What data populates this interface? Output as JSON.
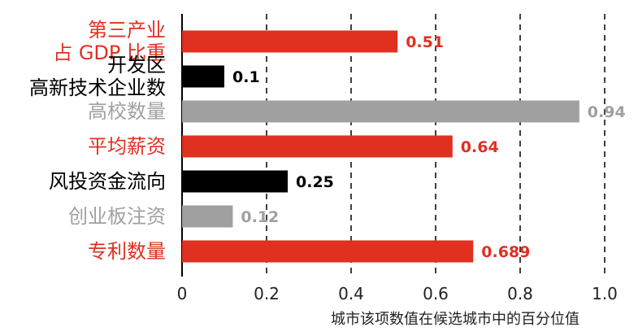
{
  "chart_data": {
    "type": "bar",
    "orientation": "horizontal",
    "categories": [
      [
        "第三产业",
        "占 GDP 比重"
      ],
      [
        "开发区",
        "高新技术企业数"
      ],
      [
        "高校数量"
      ],
      [
        "平均薪资"
      ],
      [
        "风投资金流向"
      ],
      [
        "创业板注资"
      ],
      [
        "专利数量"
      ]
    ],
    "values": [
      0.51,
      0.1,
      0.94,
      0.64,
      0.25,
      0.12,
      0.689
    ],
    "value_labels": [
      "0.51",
      "0.1",
      "0.94",
      "0.64",
      "0.25",
      "0.12",
      "0.689"
    ],
    "colors": [
      "#e03020",
      "#000000",
      "#a0a0a0",
      "#e03020",
      "#000000",
      "#a0a0a0",
      "#e03020"
    ],
    "x_ticks": [
      "0",
      "0.2",
      "0.4",
      "0.6",
      "0.8",
      "1.0"
    ],
    "xlim": [
      0,
      1.0
    ],
    "xlabel": "城市该项数值在候选城市中的百分位值",
    "grid": "vertical dashed",
    "legend": "none"
  }
}
